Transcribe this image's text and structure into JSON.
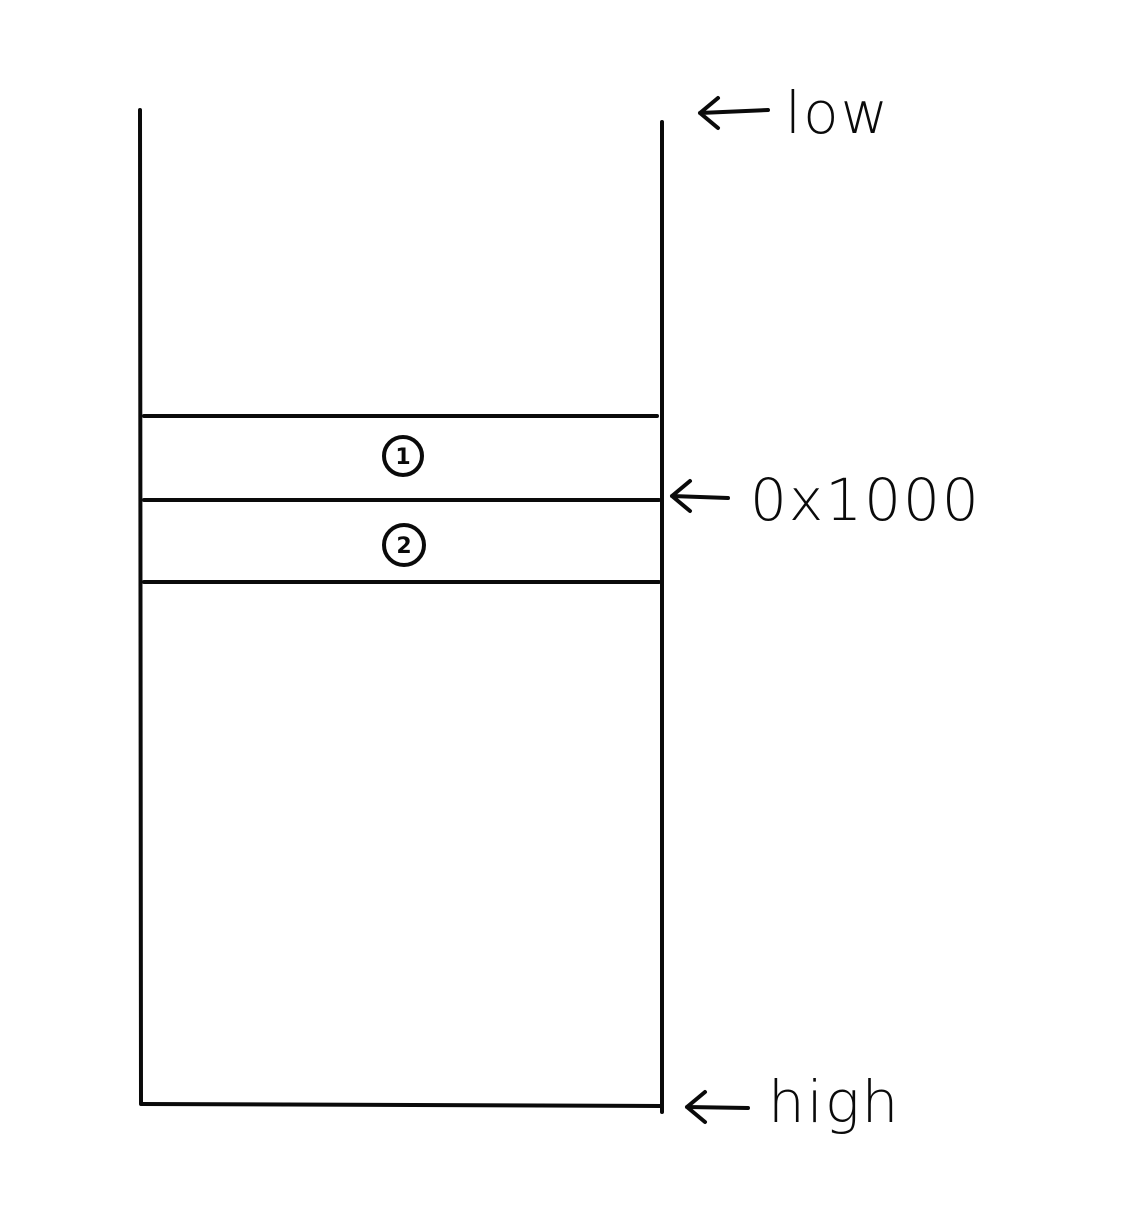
{
  "diagram": {
    "labels": {
      "low": "low",
      "address": "0x1000",
      "high": "high"
    },
    "slots": [
      {
        "number": "1"
      },
      {
        "number": "2"
      }
    ],
    "colors": {
      "ink": "#0a0a0a",
      "background": "#ffffff"
    }
  }
}
